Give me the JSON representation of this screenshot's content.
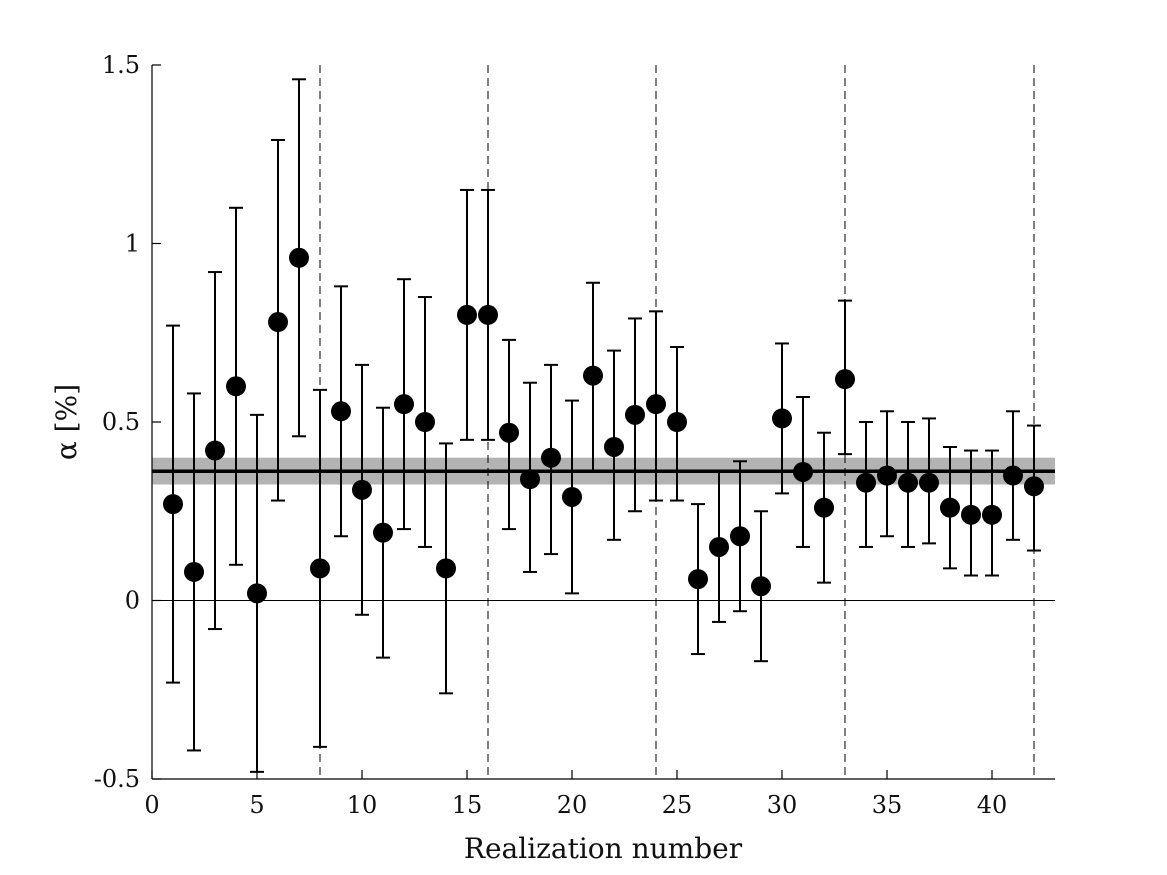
{
  "chart_data": {
    "type": "scatter",
    "title": "",
    "xlabel": "Realization number",
    "ylabel": "α [%]",
    "xlim": [
      0,
      43
    ],
    "ylim": [
      -0.5,
      1.5
    ],
    "xticks": [
      0,
      5,
      10,
      15,
      20,
      25,
      30,
      35,
      40
    ],
    "yticks": [
      -0.5,
      0,
      0.5,
      1,
      1.5
    ],
    "xtick_labels": [
      "0",
      "5",
      "10",
      "15",
      "20",
      "25",
      "30",
      "35",
      "40"
    ],
    "ytick_labels": [
      "-0.5",
      "0",
      "0.5",
      "1",
      "1.5"
    ],
    "grid": false,
    "legend": "none",
    "mean_line": 0.362,
    "mean_band": [
      0.325,
      0.4
    ],
    "zero_line": 0,
    "vertical_dashed_lines": [
      8,
      16,
      24,
      33,
      42
    ],
    "x": [
      1,
      2,
      3,
      4,
      5,
      6,
      7,
      8,
      9,
      10,
      11,
      12,
      13,
      14,
      15,
      16,
      17,
      18,
      19,
      20,
      21,
      22,
      23,
      24,
      25,
      26,
      27,
      28,
      29,
      30,
      31,
      32,
      33,
      34,
      35,
      36,
      37,
      38,
      39,
      40,
      41,
      42
    ],
    "y": [
      0.27,
      0.08,
      0.42,
      0.6,
      0.02,
      0.78,
      0.96,
      0.09,
      0.53,
      0.31,
      0.19,
      0.55,
      0.5,
      0.09,
      0.8,
      0.8,
      0.47,
      0.34,
      0.4,
      0.29,
      0.63,
      0.43,
      0.52,
      0.55,
      0.5,
      0.06,
      0.15,
      0.18,
      0.04,
      0.51,
      0.36,
      0.26,
      0.62,
      0.33,
      0.35,
      0.33,
      0.33,
      0.26,
      0.24,
      0.24,
      0.35,
      0.32
    ],
    "y_lower": [
      -0.23,
      -0.42,
      -0.08,
      0.1,
      -0.48,
      0.28,
      0.46,
      -0.41,
      0.18,
      -0.04,
      -0.16,
      0.2,
      0.15,
      -0.26,
      0.45,
      0.45,
      0.2,
      0.08,
      0.13,
      0.02,
      0.36,
      0.17,
      0.25,
      0.28,
      0.28,
      -0.15,
      -0.06,
      -0.03,
      -0.17,
      0.3,
      0.15,
      0.05,
      0.41,
      0.15,
      0.18,
      0.15,
      0.16,
      0.09,
      0.07,
      0.07,
      0.17,
      0.14
    ],
    "y_upper": [
      0.77,
      0.58,
      0.92,
      1.1,
      0.52,
      1.29,
      1.46,
      0.59,
      0.88,
      0.66,
      0.54,
      0.9,
      0.85,
      0.44,
      1.15,
      1.15,
      0.73,
      0.61,
      0.66,
      0.56,
      0.89,
      0.7,
      0.79,
      0.81,
      0.71,
      0.27,
      0.36,
      0.39,
      0.25,
      0.72,
      0.57,
      0.47,
      0.84,
      0.5,
      0.53,
      0.5,
      0.51,
      0.43,
      0.42,
      0.42,
      0.53,
      0.49
    ],
    "colors": {
      "points": "#000000",
      "band": "#b3b3b3",
      "axis": "#000000"
    }
  }
}
